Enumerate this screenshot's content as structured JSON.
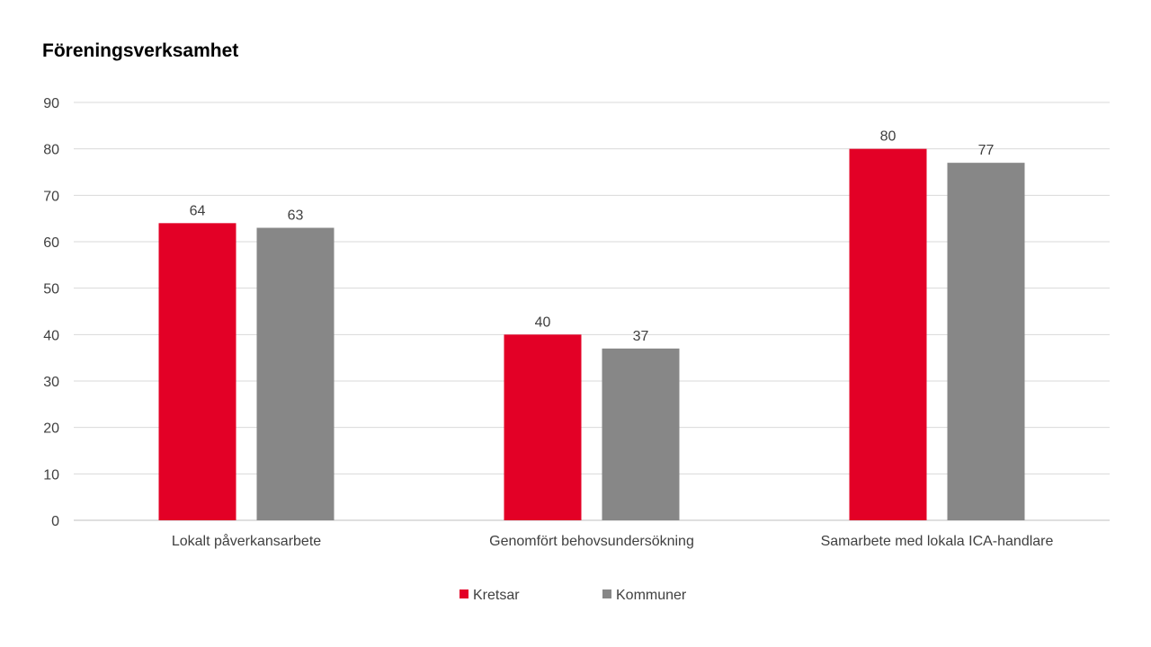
{
  "chart_data": {
    "type": "bar",
    "title": "Föreningsverksamhet",
    "xlabel": "",
    "ylabel": "",
    "ylim": [
      0,
      90
    ],
    "yticks": [
      0,
      10,
      20,
      30,
      40,
      50,
      60,
      70,
      80,
      90
    ],
    "grid": true,
    "legend_position": "bottom",
    "categories": [
      "Lokalt påverkansarbete",
      "Genomfört behovsundersökning",
      "Samarbete med lokala ICA-handlare"
    ],
    "series": [
      {
        "name": "Kretsar",
        "color": "#e30026",
        "values": [
          64,
          40,
          80
        ]
      },
      {
        "name": "Kommuner",
        "color": "#878787",
        "values": [
          63,
          37,
          77
        ]
      }
    ]
  }
}
